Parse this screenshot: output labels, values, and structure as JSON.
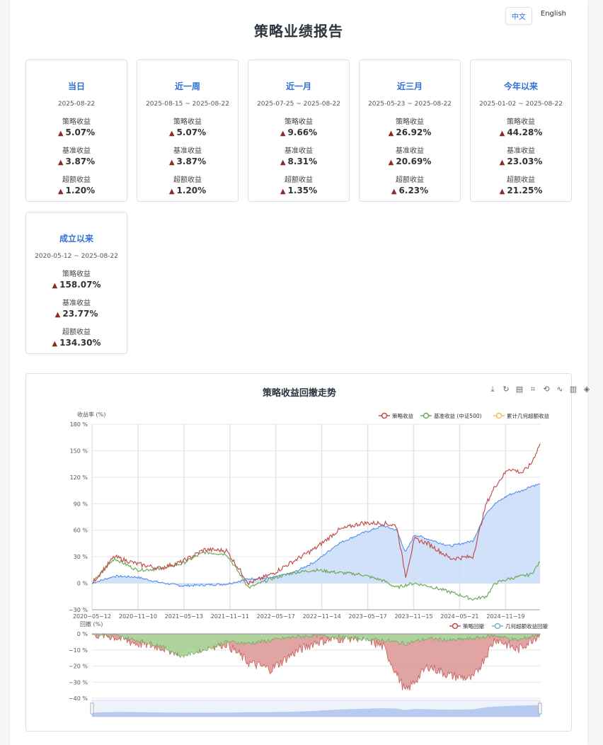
{
  "lang": {
    "zh": "中文",
    "en": "English"
  },
  "report_title": "策略业绩报告",
  "cards": [
    {
      "title": "当日",
      "date": "2025-08-22",
      "rows": [
        {
          "label": "策略收益",
          "value": "5.07%"
        },
        {
          "label": "基准收益",
          "value": "3.87%"
        },
        {
          "label": "超额收益",
          "value": "1.20%"
        }
      ]
    },
    {
      "title": "近一周",
      "date": "2025-08-15 ~ 2025-08-22",
      "rows": [
        {
          "label": "策略收益",
          "value": "5.07%"
        },
        {
          "label": "基准收益",
          "value": "3.87%"
        },
        {
          "label": "超额收益",
          "value": "1.20%"
        }
      ]
    },
    {
      "title": "近一月",
      "date": "2025-07-25 ~ 2025-08-22",
      "rows": [
        {
          "label": "策略收益",
          "value": "9.66%"
        },
        {
          "label": "基准收益",
          "value": "8.31%"
        },
        {
          "label": "超额收益",
          "value": "1.35%"
        }
      ]
    },
    {
      "title": "近三月",
      "date": "2025-05-23 ~ 2025-08-22",
      "rows": [
        {
          "label": "策略收益",
          "value": "26.92%"
        },
        {
          "label": "基准收益",
          "value": "20.69%"
        },
        {
          "label": "超额收益",
          "value": "6.23%"
        }
      ]
    },
    {
      "title": "今年以来",
      "date": "2025-01-02 ~ 2025-08-22",
      "rows": [
        {
          "label": "策略收益",
          "value": "44.28%"
        },
        {
          "label": "基准收益",
          "value": "23.03%"
        },
        {
          "label": "超额收益",
          "value": "21.25%"
        }
      ]
    },
    {
      "title": "成立以来",
      "date": "2020-05-12 ~ 2025-08-22",
      "rows": [
        {
          "label": "策略收益",
          "value": "158.07%"
        },
        {
          "label": "基准收益",
          "value": "23.77%"
        },
        {
          "label": "超额收益",
          "value": "134.30%"
        }
      ]
    }
  ],
  "up_symbol": "▲",
  "toolbox_icons": [
    "download-icon",
    "refresh-icon",
    "data-view-icon",
    "zoom-icon",
    "zoom-reset-icon",
    "line-chart-icon",
    "bar-chart-icon",
    "stack-icon"
  ],
  "chart_data": {
    "type": "line",
    "title": "策略收益回撤走势",
    "top_panel": {
      "ylabel": "收益率 (%)",
      "ylim": [
        -30,
        180
      ],
      "yticks": [
        "180 %",
        "150 %",
        "120 %",
        "90 %",
        "60 %",
        "30 %",
        "0 %",
        "−30 %"
      ],
      "x_tick_labels": [
        "2020−05−12",
        "2020−11−10",
        "2021−05−13",
        "2021−11−11",
        "2022−05−17",
        "2022−11−14",
        "2023−05−17",
        "2023−11−15",
        "2024−05−21",
        "2024−11−19"
      ],
      "legend": [
        "策略收益",
        "基准收益 (中证500)",
        "累计几何超额收益"
      ],
      "colors": {
        "strategy": "#c0504d",
        "benchmark": "#6aaa5a",
        "excess": "#4a86e8",
        "excess_fill": "#c9dcf8"
      },
      "x": [
        0,
        0.05,
        0.1,
        0.15,
        0.2,
        0.25,
        0.3,
        0.35,
        0.4,
        0.45,
        0.5,
        0.55,
        0.6,
        0.65,
        0.68,
        0.7,
        0.72,
        0.75,
        0.8,
        0.85,
        0.88,
        0.9,
        0.93,
        0.96,
        0.98,
        1.0
      ],
      "series": [
        {
          "name": "策略收益",
          "values": [
            0,
            30,
            22,
            17,
            24,
            38,
            37,
            0,
            10,
            25,
            40,
            60,
            68,
            68,
            65,
            8,
            50,
            45,
            28,
            30,
            90,
            110,
            130,
            125,
            135,
            158
          ]
        },
        {
          "name": "基准收益 (中证500)",
          "values": [
            0,
            28,
            15,
            16,
            22,
            35,
            33,
            -5,
            5,
            12,
            15,
            12,
            10,
            3,
            -5,
            -2,
            0,
            -3,
            -10,
            -18,
            -15,
            0,
            5,
            8,
            10,
            24
          ]
        },
        {
          "name": "累计几何超额收益",
          "values": [
            0,
            8,
            7,
            1,
            -3,
            -2,
            -1,
            5,
            6,
            12,
            25,
            45,
            56,
            65,
            60,
            35,
            55,
            50,
            42,
            48,
            80,
            90,
            100,
            105,
            110,
            112
          ]
        }
      ]
    },
    "bottom_panel": {
      "ylabel": "回撤 (%)",
      "ylim": [
        -40,
        0
      ],
      "yticks": [
        "0 %",
        "−10 %",
        "−20 %",
        "−30 %",
        "−40 %"
      ],
      "legend": [
        "策略回撤",
        "几何超额收益回撤"
      ],
      "colors": {
        "strategy_dd": "#c0504d",
        "strategy_dd_fill": "#dd9b99",
        "excess_dd": "#6aaa5a",
        "excess_dd_fill": "#a9d99c"
      },
      "x": [
        0,
        0.05,
        0.1,
        0.15,
        0.2,
        0.25,
        0.3,
        0.35,
        0.4,
        0.45,
        0.5,
        0.55,
        0.6,
        0.65,
        0.7,
        0.75,
        0.8,
        0.85,
        0.9,
        0.95,
        1.0
      ],
      "series": [
        {
          "name": "策略回撤",
          "values": [
            0,
            -2,
            -6,
            -8,
            -12,
            -8,
            -6,
            -18,
            -22,
            -12,
            -5,
            -3,
            -2,
            -8,
            -36,
            -20,
            -26,
            -28,
            -3,
            -10,
            0
          ]
        },
        {
          "name": "几何超额收益回撤",
          "values": [
            0,
            -1,
            -4,
            -7,
            -14,
            -10,
            -5,
            -6,
            -4,
            -2,
            -1,
            -2,
            -3,
            -4,
            -6,
            -3,
            -4,
            -3,
            -1,
            -4,
            0
          ]
        }
      ]
    }
  }
}
